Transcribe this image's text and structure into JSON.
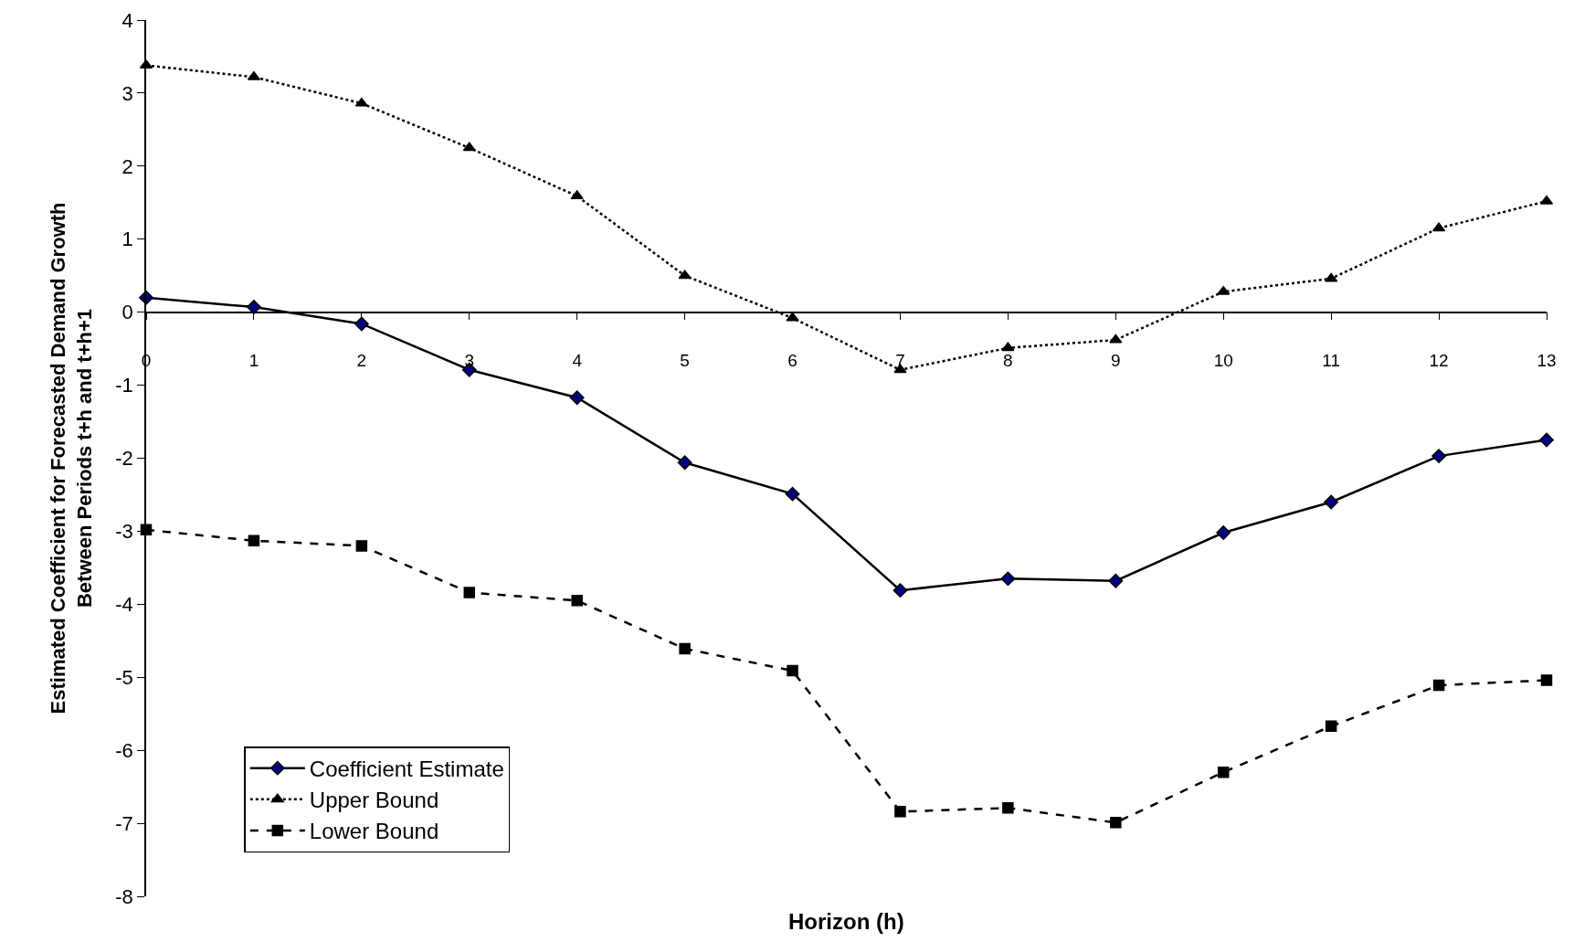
{
  "chart_data": {
    "type": "line",
    "xlabel": "Horizon (h)",
    "ylabel": "Estimated Coefficient for Forecasted Demand Growth\nBetween Periods t+h and t+h+1",
    "x": [
      0,
      1,
      2,
      3,
      4,
      5,
      6,
      7,
      8,
      9,
      10,
      11,
      12,
      13
    ],
    "xlim": [
      0,
      13
    ],
    "xticks": [
      0,
      1,
      2,
      3,
      4,
      5,
      6,
      7,
      8,
      9,
      10,
      11,
      12,
      13
    ],
    "ylim": [
      -8,
      4
    ],
    "yticks": [
      -8,
      -7,
      -6,
      -5,
      -4,
      -3,
      -2,
      -1,
      0,
      1,
      2,
      3,
      4
    ],
    "grid": false,
    "legend": "bottom left",
    "series": [
      {
        "name": "Coefficient Estimate",
        "color": "#000000",
        "marker": "diamond",
        "line_style": "solid",
        "values": [
          0.2,
          0.07,
          -0.16,
          -0.79,
          -1.17,
          -2.06,
          -2.49,
          -3.81,
          -3.65,
          -3.68,
          -3.02,
          -2.6,
          -1.97,
          -1.75
        ]
      },
      {
        "name": "Upper Bound",
        "color": "#000000",
        "marker": "triangle",
        "line_style": "dotted",
        "values": [
          3.38,
          3.22,
          2.86,
          2.25,
          1.59,
          0.5,
          -0.08,
          -0.79,
          -0.49,
          -0.38,
          0.28,
          0.46,
          1.15,
          1.52
        ]
      },
      {
        "name": "Lower Bound",
        "color": "#000000",
        "marker": "square",
        "line_style": "dashed",
        "values": [
          -2.98,
          -3.13,
          -3.2,
          -3.84,
          -3.95,
          -4.61,
          -4.91,
          -6.84,
          -6.79,
          -6.99,
          -6.3,
          -5.67,
          -5.11,
          -5.04
        ]
      }
    ]
  }
}
